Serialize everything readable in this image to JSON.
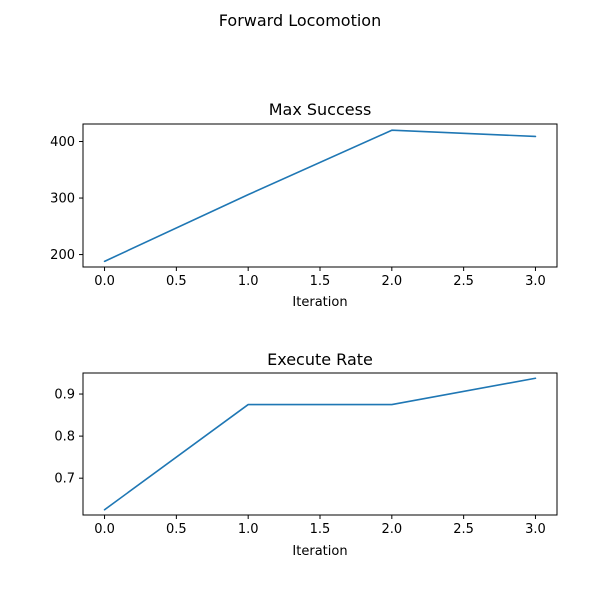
{
  "figure_title": "Forward Locomotion",
  "colors": {
    "series": "#1f77b4"
  },
  "chart_data": [
    {
      "type": "line",
      "title": "Max Success",
      "xlabel": "Iteration",
      "ylabel": "",
      "x": [
        0,
        1,
        2,
        3
      ],
      "values": [
        188,
        306,
        420,
        409
      ],
      "xlim": [
        -0.15,
        3.15
      ],
      "ylim": [
        178,
        431
      ],
      "xticks": [
        0,
        0.5,
        1,
        1.5,
        2,
        2.5,
        3
      ],
      "xtick_labels": [
        "0.0",
        "0.5",
        "1.0",
        "1.5",
        "2.0",
        "2.5",
        "3.0"
      ],
      "yticks": [
        200,
        300,
        400
      ],
      "ytick_labels": [
        "200",
        "300",
        "400"
      ],
      "grid": false,
      "legend": "none"
    },
    {
      "type": "line",
      "title": "Execute Rate",
      "xlabel": "Iteration",
      "ylabel": "",
      "x": [
        0,
        1,
        2,
        3
      ],
      "values": [
        0.625,
        0.875,
        0.875,
        0.9375
      ],
      "xlim": [
        -0.15,
        3.15
      ],
      "ylim": [
        0.6125,
        0.95
      ],
      "xticks": [
        0,
        0.5,
        1,
        1.5,
        2,
        2.5,
        3
      ],
      "xtick_labels": [
        "0.0",
        "0.5",
        "1.0",
        "1.5",
        "2.0",
        "2.5",
        "3.0"
      ],
      "yticks": [
        0.7,
        0.8,
        0.9
      ],
      "ytick_labels": [
        "0.7",
        "0.8",
        "0.9"
      ],
      "grid": false,
      "legend": "none"
    }
  ]
}
